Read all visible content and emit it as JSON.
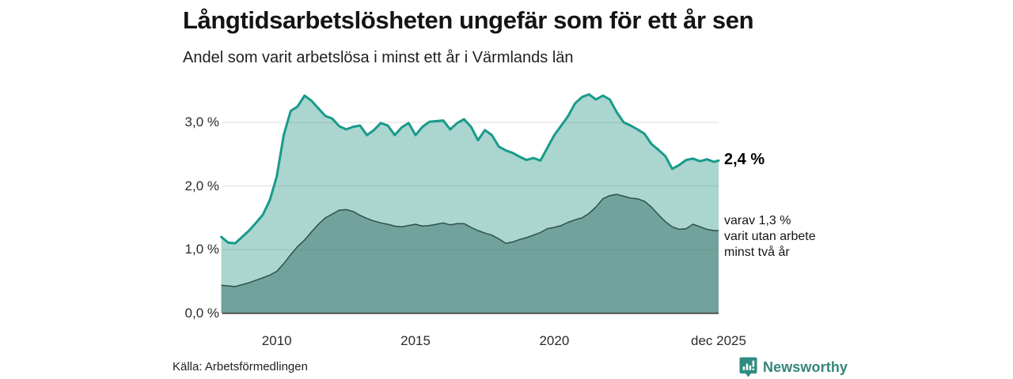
{
  "header": {
    "title": "Långtidsarbetslösheten ungefär som för ett år sen",
    "subtitle": "Andel som varit arbetslösa i minst ett år i Värmlands län"
  },
  "chart_data": {
    "type": "area",
    "title": "Långtidsarbetslösheten ungefär som för ett år sen",
    "xlabel": "",
    "ylabel": "",
    "xlim": [
      2008.04,
      2025.92
    ],
    "ylim": [
      0,
      3.5
    ],
    "grid": "horizontal",
    "legend_position": "none",
    "x": [
      2008.0,
      2008.25,
      2008.5,
      2008.75,
      2009.0,
      2009.25,
      2009.5,
      2009.75,
      2010.0,
      2010.25,
      2010.5,
      2010.75,
      2011.0,
      2011.25,
      2011.5,
      2011.75,
      2012.0,
      2012.25,
      2012.5,
      2012.75,
      2013.0,
      2013.25,
      2013.5,
      2013.75,
      2014.0,
      2014.25,
      2014.5,
      2014.75,
      2015.0,
      2015.25,
      2015.5,
      2015.75,
      2016.0,
      2016.25,
      2016.5,
      2016.75,
      2017.0,
      2017.25,
      2017.5,
      2017.75,
      2018.0,
      2018.25,
      2018.5,
      2018.75,
      2019.0,
      2019.25,
      2019.5,
      2019.75,
      2020.0,
      2020.25,
      2020.5,
      2020.75,
      2021.0,
      2021.25,
      2021.5,
      2021.75,
      2022.0,
      2022.25,
      2022.5,
      2022.75,
      2023.0,
      2023.25,
      2023.5,
      2023.75,
      2024.0,
      2024.25,
      2024.5,
      2024.75,
      2025.0,
      2025.25,
      2025.5,
      2025.75,
      2025.92
    ],
    "series": [
      {
        "name": "Andel som varit arbetslösa i minst ett år",
        "values": [
          1.2,
          1.11,
          1.1,
          1.2,
          1.3,
          1.42,
          1.55,
          1.78,
          2.15,
          2.8,
          3.18,
          3.25,
          3.42,
          3.34,
          3.22,
          3.1,
          3.06,
          2.94,
          2.89,
          2.93,
          2.95,
          2.8,
          2.88,
          2.99,
          2.95,
          2.8,
          2.92,
          2.99,
          2.8,
          2.93,
          3.01,
          3.02,
          3.03,
          2.89,
          2.99,
          3.05,
          2.93,
          2.72,
          2.88,
          2.8,
          2.62,
          2.56,
          2.52,
          2.46,
          2.41,
          2.44,
          2.4,
          2.6,
          2.8,
          2.95,
          3.1,
          3.3,
          3.4,
          3.44,
          3.36,
          3.42,
          3.36,
          3.16,
          3.0,
          2.95,
          2.89,
          2.82,
          2.66,
          2.57,
          2.47,
          2.27,
          2.33,
          2.41,
          2.43,
          2.39,
          2.42,
          2.38,
          2.4
        ]
      },
      {
        "name": "varav utan arbete minst två år",
        "values": [
          0.44,
          0.43,
          0.42,
          0.45,
          0.48,
          0.52,
          0.56,
          0.6,
          0.66,
          0.78,
          0.92,
          1.05,
          1.15,
          1.28,
          1.4,
          1.5,
          1.56,
          1.62,
          1.63,
          1.6,
          1.54,
          1.49,
          1.45,
          1.42,
          1.4,
          1.37,
          1.36,
          1.38,
          1.4,
          1.37,
          1.38,
          1.4,
          1.42,
          1.39,
          1.41,
          1.41,
          1.35,
          1.3,
          1.26,
          1.23,
          1.17,
          1.1,
          1.12,
          1.16,
          1.19,
          1.23,
          1.27,
          1.33,
          1.35,
          1.38,
          1.43,
          1.47,
          1.5,
          1.57,
          1.67,
          1.8,
          1.85,
          1.87,
          1.84,
          1.81,
          1.8,
          1.76,
          1.67,
          1.55,
          1.44,
          1.36,
          1.32,
          1.33,
          1.4,
          1.36,
          1.32,
          1.3,
          1.3
        ]
      }
    ],
    "yticks": {
      "values": [
        3,
        2,
        1,
        0
      ],
      "labels": [
        "3,0 %",
        "2,0 %",
        "1,0 %",
        "0,0 %"
      ]
    },
    "xticks": {
      "values": [
        2010,
        2015,
        2020,
        2025.92
      ],
      "labels": [
        "2010",
        "2015",
        "2020",
        "dec 2025"
      ]
    },
    "annotations": {
      "end_value_primary": "2,4 %",
      "end_note_lines": [
        "varav 1,3 %",
        "varit utan arbete",
        "minst två år"
      ]
    }
  },
  "colors": {
    "line_primary": "#199a8b",
    "fill_primary": "#aad6cf",
    "line_secondary": "#30504a",
    "fill_secondary": "#71a29b",
    "gridline": "#dcdcdc",
    "baseline": "#3e3e3e",
    "brand_teal": "#35847b"
  },
  "footer": {
    "source": "Källa: Arbetsförmedlingen",
    "brand": "Newsworthy",
    "brand_icon": "newsworthy-pin-barchart-icon"
  }
}
